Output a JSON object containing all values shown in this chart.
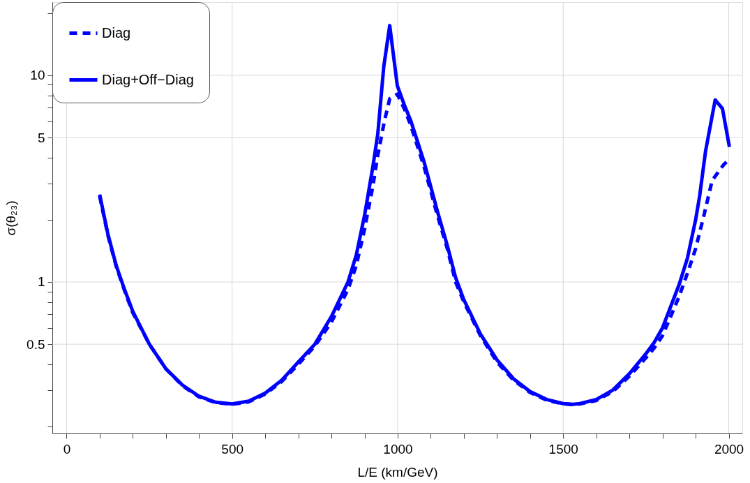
{
  "chart_data": {
    "type": "line",
    "xlabel": "L/E (km/GeV)",
    "ylabel": "σ(θ₂₃)",
    "log": "y",
    "grid": true,
    "legend": "top left",
    "xlim": [
      -43,
      2041
    ],
    "xticks": [
      0,
      {
        "value": 100,
        "label": null
      },
      {
        "value": 200,
        "label": null
      },
      {
        "value": 300,
        "label": null
      },
      {
        "value": 400,
        "label": null
      },
      500,
      {
        "value": 600,
        "label": null
      },
      {
        "value": 700,
        "label": null
      },
      {
        "value": 800,
        "label": null
      },
      {
        "value": 900,
        "label": null
      },
      1000,
      {
        "value": 1100,
        "label": null
      },
      {
        "value": 1200,
        "label": null
      },
      {
        "value": 1300,
        "label": null
      },
      {
        "value": 1400,
        "label": null
      },
      1500,
      {
        "value": 1600,
        "label": null
      },
      {
        "value": 1700,
        "label": null
      },
      {
        "value": 1800,
        "label": null
      },
      {
        "value": 1900,
        "label": null
      },
      2000
    ],
    "ylim": [
      0.185,
      22.6
    ],
    "yticks": [
      {
        "value": 0.2,
        "label": null
      },
      {
        "value": 0.3,
        "label": null
      },
      {
        "value": 0.4,
        "label": null
      },
      0.5,
      {
        "value": 0.6,
        "label": null
      },
      {
        "value": 0.7,
        "label": null
      },
      {
        "value": 0.8,
        "label": null
      },
      {
        "value": 0.9,
        "label": null
      },
      1,
      {
        "value": 2,
        "label": null
      },
      {
        "value": 3,
        "label": null
      },
      {
        "value": 4,
        "label": null
      },
      5,
      {
        "value": 6,
        "label": null
      },
      {
        "value": 7,
        "label": null
      },
      {
        "value": 8,
        "label": null
      },
      {
        "value": 9,
        "label": null
      },
      10,
      {
        "value": 20,
        "label": null
      }
    ],
    "series": [
      {
        "name": "Diag",
        "color": "#0000ff",
        "line_style": "dashed",
        "x": [
          100,
          125,
          150,
          175,
          200,
          250,
          300,
          350,
          400,
          450,
          500,
          550,
          600,
          650,
          700,
          750,
          800,
          850,
          875,
          900,
          925,
          940,
          960,
          976,
          999,
          1020,
          1040,
          1080,
          1120,
          1150,
          1175,
          1200,
          1250,
          1300,
          1350,
          1400,
          1450,
          1500,
          1530,
          1550,
          1600,
          1650,
          1700,
          1750,
          1775,
          1800,
          1850,
          1875,
          1900,
          1925,
          1950,
          1985,
          2000
        ],
        "values": [
          2.6,
          1.68,
          1.19,
          0.91,
          0.71,
          0.5,
          0.38,
          0.315,
          0.278,
          0.261,
          0.256,
          0.263,
          0.287,
          0.33,
          0.4,
          0.49,
          0.64,
          0.92,
          1.2,
          1.8,
          2.9,
          4.1,
          6.0,
          7.7,
          8.1,
          6.9,
          5.7,
          3.6,
          2.1,
          1.45,
          1.0,
          0.8,
          0.55,
          0.41,
          0.335,
          0.292,
          0.268,
          0.257,
          0.255,
          0.257,
          0.267,
          0.295,
          0.35,
          0.43,
          0.48,
          0.55,
          0.85,
          1.1,
          1.45,
          2.1,
          3.1,
          3.7,
          3.9
        ]
      },
      {
        "name": "Diag+Off−Diag",
        "color": "#0000ff",
        "line_style": "solid",
        "x": [
          100,
          125,
          150,
          175,
          200,
          250,
          300,
          350,
          400,
          450,
          500,
          550,
          600,
          650,
          700,
          750,
          800,
          850,
          875,
          900,
          925,
          940,
          958,
          976,
          999,
          1020,
          1040,
          1080,
          1120,
          1150,
          1175,
          1200,
          1250,
          1300,
          1350,
          1400,
          1450,
          1500,
          1530,
          1550,
          1600,
          1650,
          1700,
          1750,
          1775,
          1800,
          1850,
          1875,
          1900,
          1912,
          1930,
          1959,
          1981,
          2002
        ],
        "values": [
          2.65,
          1.7,
          1.2,
          0.92,
          0.72,
          0.5,
          0.38,
          0.317,
          0.28,
          0.262,
          0.257,
          0.265,
          0.29,
          0.335,
          0.41,
          0.5,
          0.68,
          1.0,
          1.35,
          2.1,
          3.6,
          5.2,
          11,
          17.4,
          8.9,
          7.2,
          6.0,
          3.8,
          2.2,
          1.5,
          1.05,
          0.82,
          0.56,
          0.42,
          0.34,
          0.295,
          0.27,
          0.258,
          0.256,
          0.258,
          0.27,
          0.3,
          0.36,
          0.45,
          0.51,
          0.6,
          0.97,
          1.3,
          2.0,
          2.6,
          4.3,
          7.6,
          6.9,
          4.5
        ]
      }
    ]
  }
}
